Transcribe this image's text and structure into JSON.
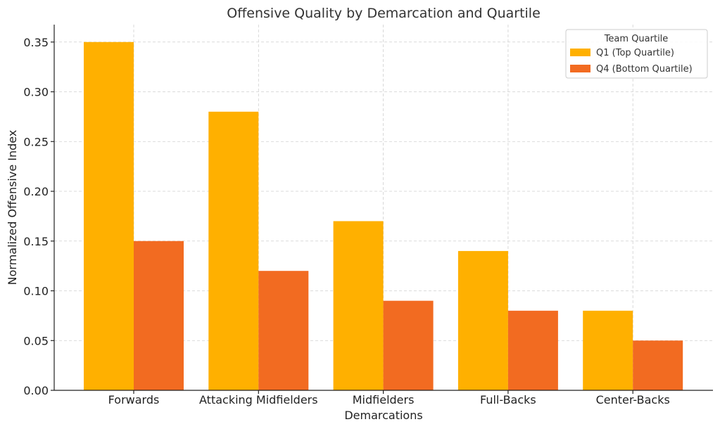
{
  "chart_data": {
    "type": "bar",
    "title": "Offensive Quality by Demarcation and Quartile",
    "xlabel": "Demarcations",
    "ylabel": "Normalized Offensive Index",
    "categories": [
      "Forwards",
      "Attacking Midfielders",
      "Midfielders",
      "Full-Backs",
      "Center-Backs"
    ],
    "series": [
      {
        "name": "Q1 (Top Quartile)",
        "values": [
          0.35,
          0.28,
          0.17,
          0.14,
          0.08
        ],
        "color": "#FFB000"
      },
      {
        "name": "Q4 (Bottom Quartile)",
        "values": [
          0.15,
          0.12,
          0.09,
          0.08,
          0.05
        ],
        "color": "#F26B21"
      }
    ],
    "ylim": [
      0,
      0.3675
    ],
    "yticks": [
      "0.00",
      "0.05",
      "0.10",
      "0.15",
      "0.20",
      "0.25",
      "0.30",
      "0.35"
    ],
    "grid": true,
    "legend": {
      "title": "Team Quartile",
      "placement": "top-right"
    }
  }
}
